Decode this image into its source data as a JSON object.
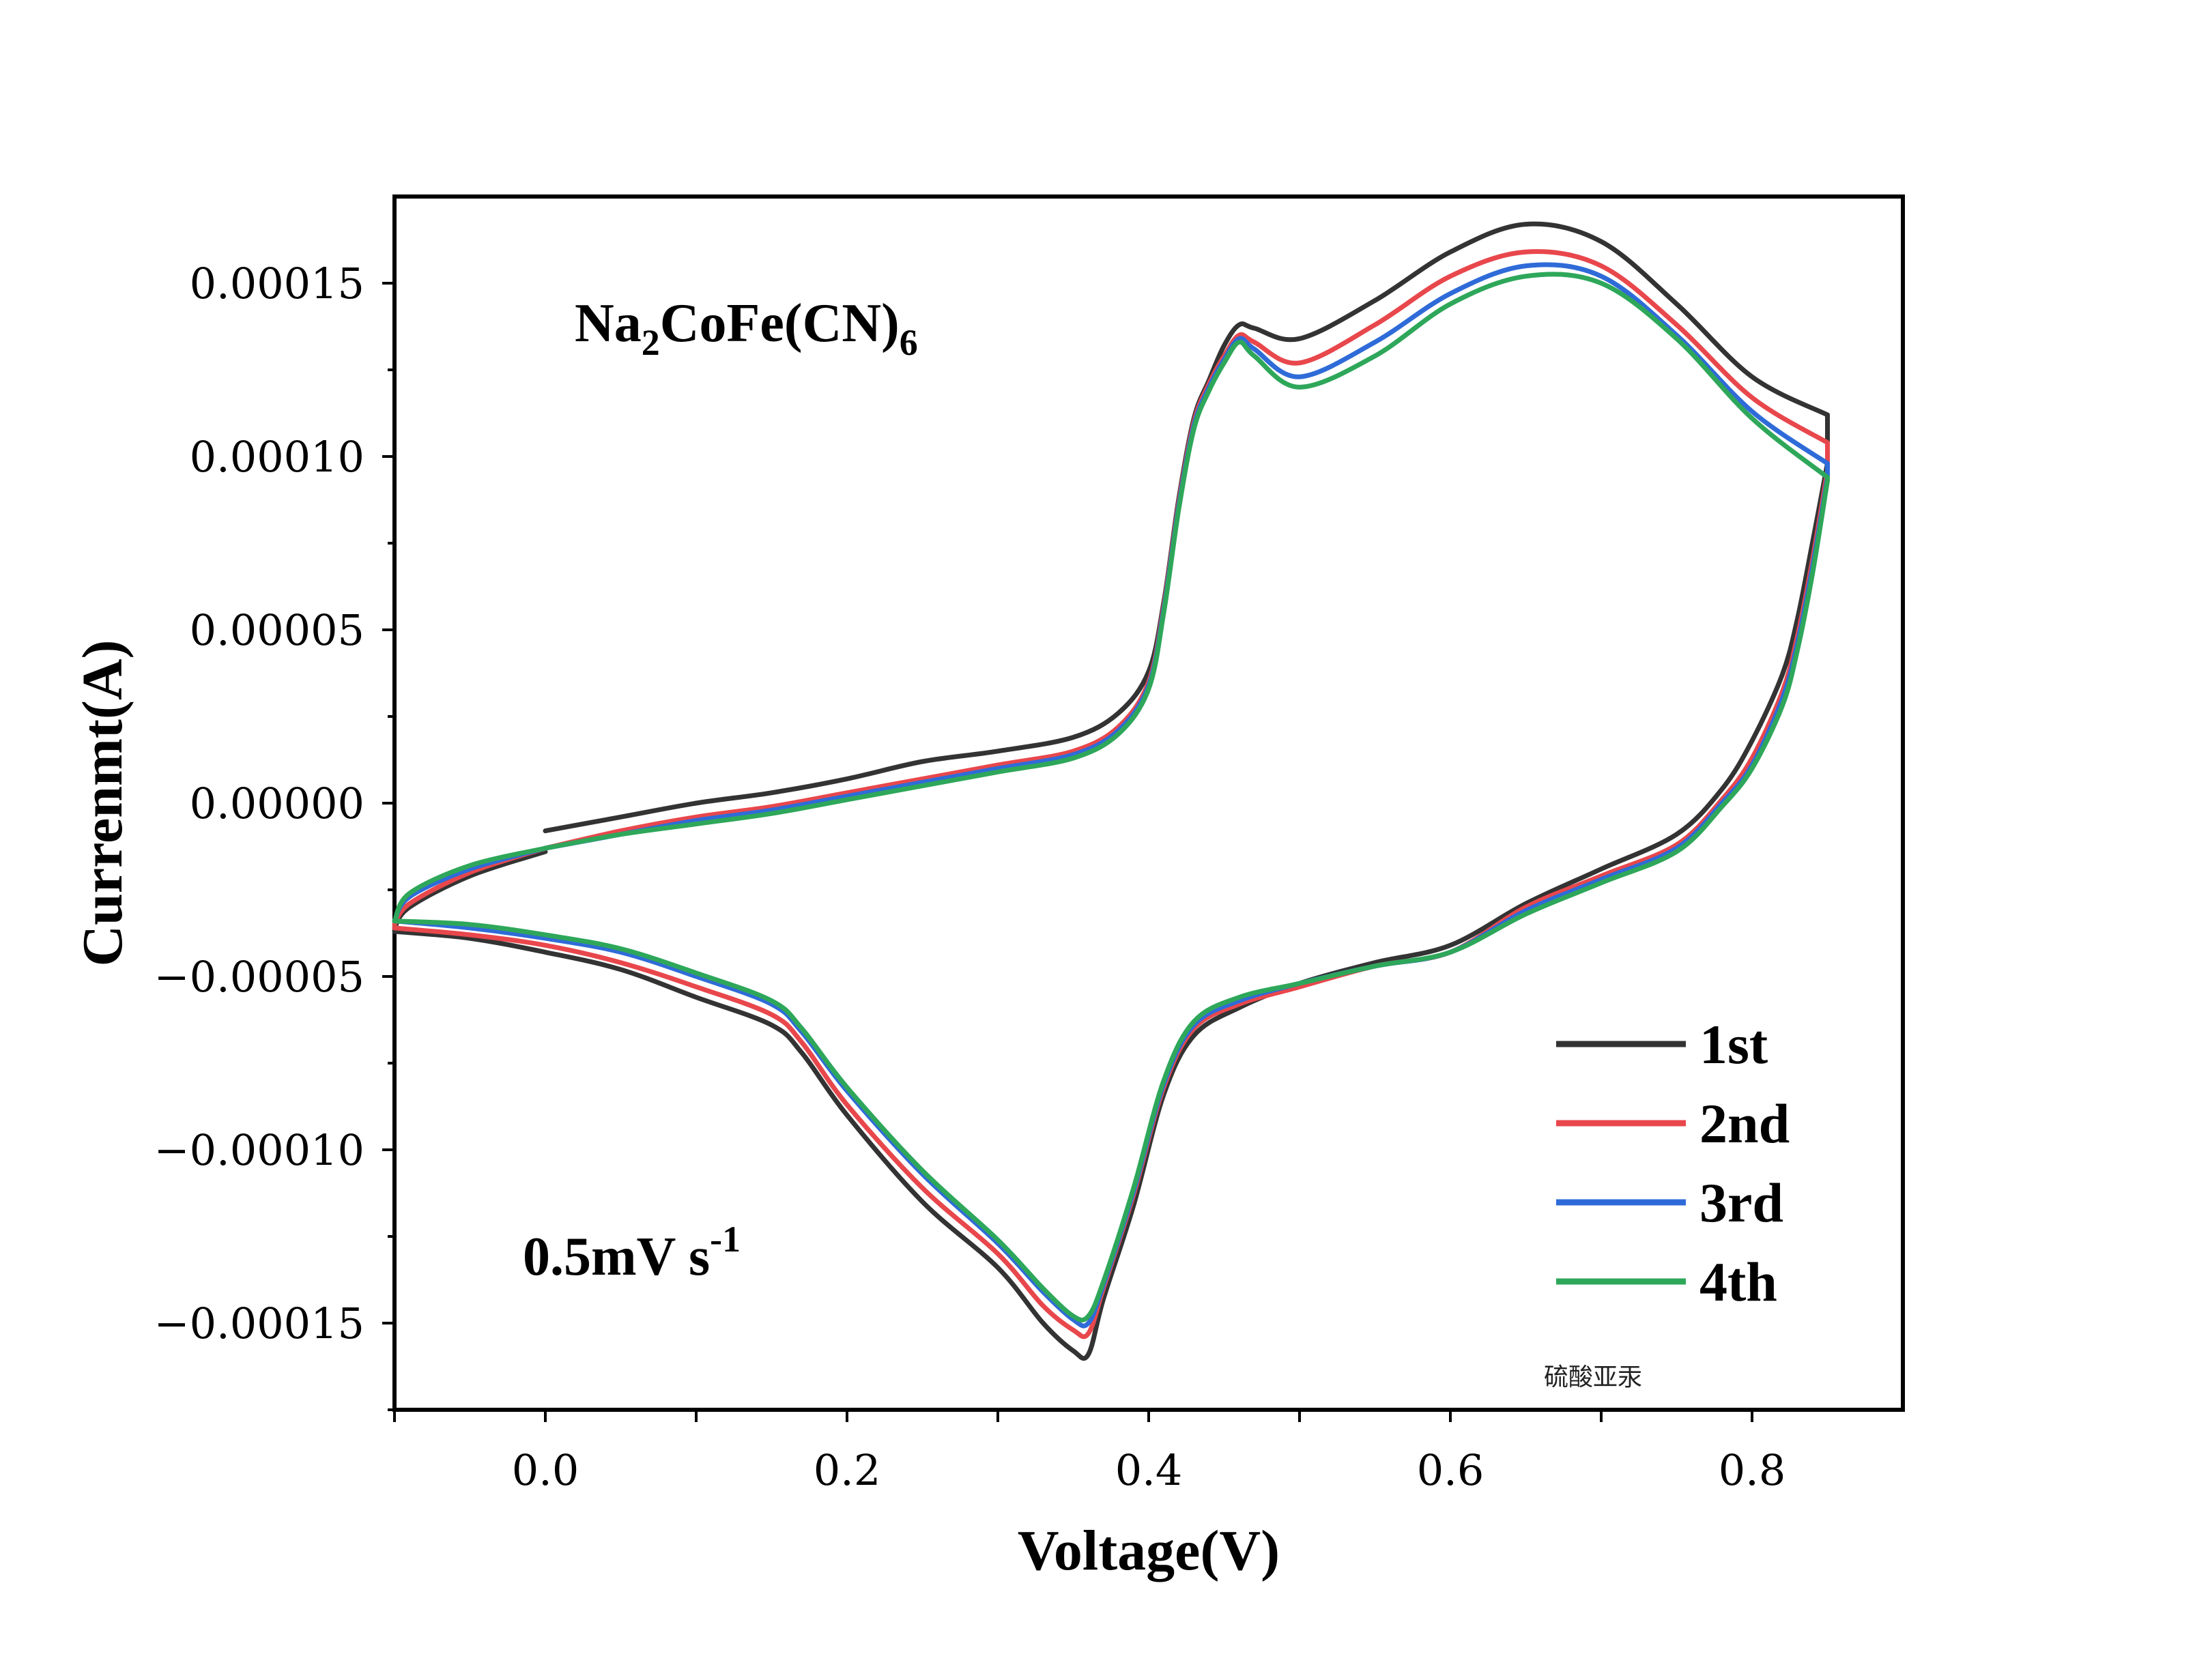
{
  "chart_data": {
    "type": "line",
    "xlabel": "Voltage(V)",
    "ylabel": "Currenmt(A)",
    "xlim": [
      -0.1,
      0.9
    ],
    "ylim": [
      -0.000175,
      0.000175
    ],
    "x_ticks": [
      "0.0",
      "0.2",
      "0.4",
      "0.6",
      "0.8"
    ],
    "y_ticks": [
      "0.00015",
      "0.00010",
      "0.00005",
      "0.00000",
      "−0.00005",
      "−0.00010",
      "−0.00015"
    ],
    "y_tick_values": [
      0.00015,
      0.0001,
      5e-05,
      0,
      -5e-05,
      -0.0001,
      -0.00015
    ],
    "x_tick_values": [
      0.0,
      0.2,
      0.4,
      0.6,
      0.8
    ],
    "annotations": {
      "compound": {
        "pre": "Na",
        "s1": "2",
        "mid": "CoFe(CN)",
        "s2": "6"
      },
      "scan_rate": {
        "main": "0.5mV s",
        "sup": "-1"
      }
    },
    "watermark": "硫酸亚汞",
    "legend_position": "bottom-right",
    "series": [
      {
        "name": "1st",
        "color": "#333333",
        "start": [
          0.0,
          -8e-06
        ],
        "anodic": [
          [
            0.05,
            -4e-06
          ],
          [
            0.1,
            0.0
          ],
          [
            0.15,
            3e-06
          ],
          [
            0.2,
            7e-06
          ],
          [
            0.25,
            1.2e-05
          ],
          [
            0.3,
            1.5e-05
          ],
          [
            0.35,
            1.9e-05
          ],
          [
            0.38,
            2.6e-05
          ],
          [
            0.4,
            3.8e-05
          ],
          [
            0.41,
            5.8e-05
          ],
          [
            0.42,
            8.8e-05
          ],
          [
            0.43,
            0.000111
          ],
          [
            0.44,
            0.000122
          ],
          [
            0.45,
            0.000132
          ],
          [
            0.46,
            0.000138
          ],
          [
            0.47,
            0.000137
          ],
          [
            0.5,
            0.000134
          ],
          [
            0.55,
            0.000145
          ],
          [
            0.6,
            0.000159
          ],
          [
            0.65,
            0.000167
          ],
          [
            0.7,
            0.000162
          ],
          [
            0.75,
            0.000144
          ],
          [
            0.8,
            0.000123
          ],
          [
            0.85,
            0.000112
          ]
        ],
        "cathodic": [
          [
            0.85,
            9.8e-05
          ],
          [
            0.84,
            7.5e-05
          ],
          [
            0.83,
            5.3e-05
          ],
          [
            0.82,
            3.7e-05
          ],
          [
            0.8,
            1.8e-05
          ],
          [
            0.78,
            4e-06
          ],
          [
            0.75,
            -9e-06
          ],
          [
            0.7,
            -1.9e-05
          ],
          [
            0.65,
            -2.9e-05
          ],
          [
            0.6,
            -4.1e-05
          ],
          [
            0.55,
            -4.6e-05
          ],
          [
            0.5,
            -5.2e-05
          ],
          [
            0.46,
            -5.9e-05
          ],
          [
            0.43,
            -6.7e-05
          ],
          [
            0.41,
            -8.4e-05
          ],
          [
            0.39,
            -0.000116
          ],
          [
            0.37,
            -0.000143
          ],
          [
            0.36,
            -0.000159
          ],
          [
            0.35,
            -0.000158
          ],
          [
            0.33,
            -0.00015
          ],
          [
            0.3,
            -0.000134
          ],
          [
            0.25,
            -0.000115
          ],
          [
            0.2,
            -9e-05
          ],
          [
            0.17,
            -7.2e-05
          ],
          [
            0.15,
            -6.4e-05
          ],
          [
            0.1,
            -5.6e-05
          ],
          [
            0.05,
            -4.8e-05
          ],
          [
            0.0,
            -4.3e-05
          ],
          [
            -0.05,
            -3.9e-05
          ],
          [
            -0.1,
            -3.7e-05
          ]
        ],
        "return": [
          [
            -0.1,
            -3.6e-05
          ],
          [
            -0.09,
            -3e-05
          ],
          [
            -0.05,
            -2.1e-05
          ],
          [
            0.0,
            -1.4e-05
          ]
        ]
      },
      {
        "name": "2nd",
        "color": "#e8474c",
        "start": [
          0.0,
          -1.3e-05
        ],
        "anodic": [
          [
            0.05,
            -8e-06
          ],
          [
            0.1,
            -4e-06
          ],
          [
            0.15,
            -1e-06
          ],
          [
            0.2,
            3e-06
          ],
          [
            0.25,
            7e-06
          ],
          [
            0.3,
            1.1e-05
          ],
          [
            0.35,
            1.5e-05
          ],
          [
            0.38,
            2.2e-05
          ],
          [
            0.4,
            3.5e-05
          ],
          [
            0.41,
            5.7e-05
          ],
          [
            0.42,
            8.7e-05
          ],
          [
            0.43,
            0.00011
          ],
          [
            0.44,
            0.000121
          ],
          [
            0.45,
            0.000129
          ],
          [
            0.46,
            0.000135
          ],
          [
            0.47,
            0.000133
          ],
          [
            0.5,
            0.000127
          ],
          [
            0.55,
            0.000138
          ],
          [
            0.6,
            0.000152
          ],
          [
            0.65,
            0.000159
          ],
          [
            0.7,
            0.000155
          ],
          [
            0.75,
            0.000138
          ],
          [
            0.8,
            0.000117
          ],
          [
            0.85,
            0.000104
          ]
        ],
        "cathodic": [
          [
            0.85,
            9.6e-05
          ],
          [
            0.84,
            7e-05
          ],
          [
            0.83,
            4.8e-05
          ],
          [
            0.82,
            3.2e-05
          ],
          [
            0.8,
            1.3e-05
          ],
          [
            0.78,
            1e-06
          ],
          [
            0.75,
            -1.2e-05
          ],
          [
            0.7,
            -2.1e-05
          ],
          [
            0.65,
            -3e-05
          ],
          [
            0.6,
            -4.3e-05
          ],
          [
            0.55,
            -4.7e-05
          ],
          [
            0.5,
            -5.3e-05
          ],
          [
            0.46,
            -5.8e-05
          ],
          [
            0.43,
            -6.5e-05
          ],
          [
            0.41,
            -8.2e-05
          ],
          [
            0.39,
            -0.000113
          ],
          [
            0.37,
            -0.00014
          ],
          [
            0.36,
            -0.000153
          ],
          [
            0.35,
            -0.000152
          ],
          [
            0.33,
            -0.000145
          ],
          [
            0.3,
            -0.00013
          ],
          [
            0.25,
            -0.000111
          ],
          [
            0.2,
            -8.7e-05
          ],
          [
            0.17,
            -6.9e-05
          ],
          [
            0.15,
            -6.1e-05
          ],
          [
            0.1,
            -5.3e-05
          ],
          [
            0.05,
            -4.6e-05
          ],
          [
            0.0,
            -4.1e-05
          ],
          [
            -0.05,
            -3.8e-05
          ],
          [
            -0.1,
            -3.6e-05
          ]
        ],
        "return": [
          [
            -0.1,
            -3.5e-05
          ],
          [
            -0.09,
            -2.9e-05
          ],
          [
            -0.05,
            -2e-05
          ],
          [
            0.0,
            -1.3e-05
          ]
        ]
      },
      {
        "name": "3rd",
        "color": "#2f6bd8",
        "start": [
          0.0,
          -1.3e-05
        ],
        "anodic": [
          [
            0.05,
            -9e-06
          ],
          [
            0.1,
            -5e-06
          ],
          [
            0.15,
            -2e-06
          ],
          [
            0.2,
            2e-06
          ],
          [
            0.25,
            6e-06
          ],
          [
            0.3,
            1e-05
          ],
          [
            0.35,
            1.4e-05
          ],
          [
            0.38,
            2.1e-05
          ],
          [
            0.4,
            3.4e-05
          ],
          [
            0.41,
            5.6e-05
          ],
          [
            0.42,
            8.6e-05
          ],
          [
            0.43,
            0.000109
          ],
          [
            0.44,
            0.00012
          ],
          [
            0.45,
            0.000128
          ],
          [
            0.46,
            0.000134
          ],
          [
            0.47,
            0.000131
          ],
          [
            0.5,
            0.000123
          ],
          [
            0.55,
            0.000133
          ],
          [
            0.6,
            0.000147
          ],
          [
            0.65,
            0.000155
          ],
          [
            0.7,
            0.000152
          ],
          [
            0.75,
            0.000135
          ],
          [
            0.8,
            0.000113
          ],
          [
            0.85,
            9.8e-05
          ]
        ],
        "cathodic": [
          [
            0.85,
            9.4e-05
          ],
          [
            0.84,
            6.8e-05
          ],
          [
            0.83,
            4.6e-05
          ],
          [
            0.82,
            3e-05
          ],
          [
            0.8,
            1.1e-05
          ],
          [
            0.78,
            0.0
          ],
          [
            0.75,
            -1.3e-05
          ],
          [
            0.7,
            -2.2e-05
          ],
          [
            0.65,
            -3.1e-05
          ],
          [
            0.6,
            -4.3e-05
          ],
          [
            0.55,
            -4.7e-05
          ],
          [
            0.5,
            -5.2e-05
          ],
          [
            0.46,
            -5.7e-05
          ],
          [
            0.43,
            -6.4e-05
          ],
          [
            0.41,
            -8.1e-05
          ],
          [
            0.39,
            -0.000112
          ],
          [
            0.37,
            -0.000139
          ],
          [
            0.36,
            -0.00015
          ],
          [
            0.35,
            -0.000149
          ],
          [
            0.33,
            -0.000141
          ],
          [
            0.3,
            -0.000127
          ],
          [
            0.25,
            -0.000107
          ],
          [
            0.2,
            -8.3e-05
          ],
          [
            0.17,
            -6.6e-05
          ],
          [
            0.15,
            -5.8e-05
          ],
          [
            0.1,
            -5e-05
          ],
          [
            0.05,
            -4.3e-05
          ],
          [
            0.0,
            -3.9e-05
          ],
          [
            -0.05,
            -3.6e-05
          ],
          [
            -0.1,
            -3.4e-05
          ]
        ],
        "return": [
          [
            -0.1,
            -3.4e-05
          ],
          [
            -0.09,
            -2.7e-05
          ],
          [
            -0.05,
            -1.9e-05
          ],
          [
            0.0,
            -1.3e-05
          ]
        ]
      },
      {
        "name": "4th",
        "color": "#2ea75a",
        "start": [
          0.0,
          -1.3e-05
        ],
        "anodic": [
          [
            0.05,
            -9e-06
          ],
          [
            0.1,
            -6e-06
          ],
          [
            0.15,
            -3e-06
          ],
          [
            0.2,
            1e-06
          ],
          [
            0.25,
            5e-06
          ],
          [
            0.3,
            9e-06
          ],
          [
            0.35,
            1.3e-05
          ],
          [
            0.38,
            2e-05
          ],
          [
            0.4,
            3.3e-05
          ],
          [
            0.41,
            5.5e-05
          ],
          [
            0.42,
            8.5e-05
          ],
          [
            0.43,
            0.000108
          ],
          [
            0.44,
            0.000119
          ],
          [
            0.45,
            0.000127
          ],
          [
            0.46,
            0.000133
          ],
          [
            0.47,
            0.000129
          ],
          [
            0.5,
            0.00012
          ],
          [
            0.55,
            0.000129
          ],
          [
            0.6,
            0.000144
          ],
          [
            0.65,
            0.000152
          ],
          [
            0.7,
            0.00015
          ],
          [
            0.75,
            0.000134
          ],
          [
            0.8,
            0.000111
          ],
          [
            0.85,
            9.4e-05
          ]
        ],
        "cathodic": [
          [
            0.85,
            9.3e-05
          ],
          [
            0.84,
            6.6e-05
          ],
          [
            0.83,
            4.4e-05
          ],
          [
            0.82,
            2.8e-05
          ],
          [
            0.8,
            1e-05
          ],
          [
            0.78,
            -1e-06
          ],
          [
            0.75,
            -1.4e-05
          ],
          [
            0.7,
            -2.3e-05
          ],
          [
            0.65,
            -3.2e-05
          ],
          [
            0.6,
            -4.3e-05
          ],
          [
            0.55,
            -4.7e-05
          ],
          [
            0.5,
            -5.2e-05
          ],
          [
            0.46,
            -5.6e-05
          ],
          [
            0.43,
            -6.3e-05
          ],
          [
            0.41,
            -8e-05
          ],
          [
            0.39,
            -0.000111
          ],
          [
            0.37,
            -0.000138
          ],
          [
            0.36,
            -0.000148
          ],
          [
            0.35,
            -0.000148
          ],
          [
            0.33,
            -0.00014
          ],
          [
            0.3,
            -0.000126
          ],
          [
            0.25,
            -0.000106
          ],
          [
            0.2,
            -8.2e-05
          ],
          [
            0.17,
            -6.5e-05
          ],
          [
            0.15,
            -5.7e-05
          ],
          [
            0.1,
            -4.9e-05
          ],
          [
            0.05,
            -4.2e-05
          ],
          [
            0.0,
            -3.8e-05
          ],
          [
            -0.05,
            -3.5e-05
          ],
          [
            -0.1,
            -3.4e-05
          ]
        ],
        "return": [
          [
            -0.1,
            -3.4e-05
          ],
          [
            -0.09,
            -2.6e-05
          ],
          [
            -0.05,
            -1.8e-05
          ],
          [
            0.0,
            -1.3e-05
          ]
        ]
      }
    ]
  }
}
